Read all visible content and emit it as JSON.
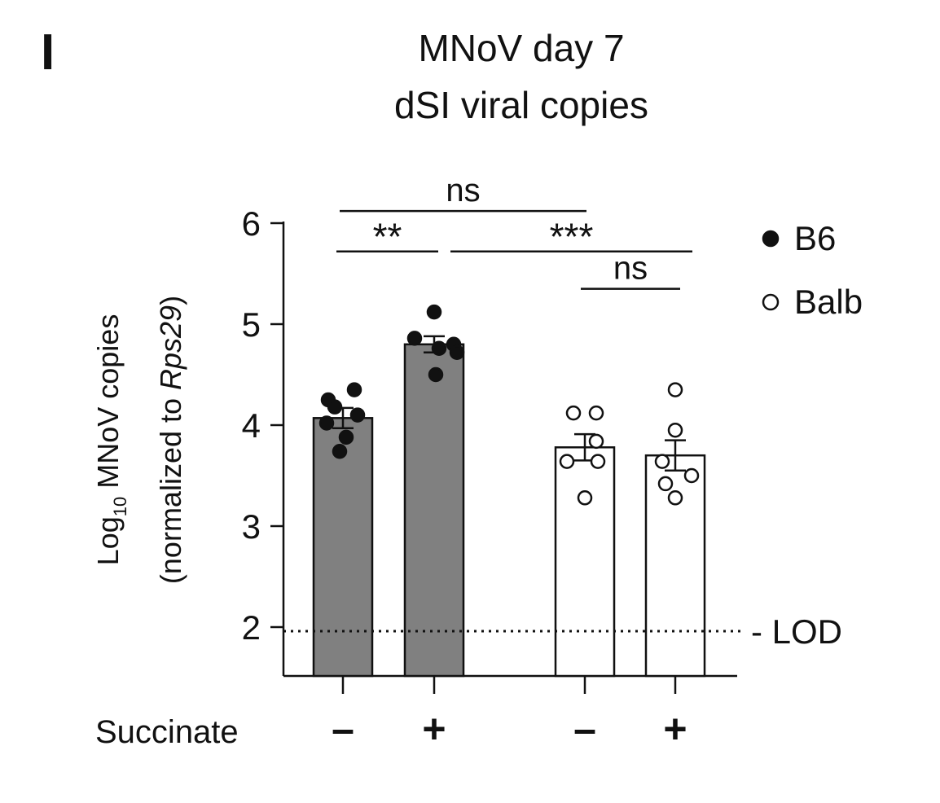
{
  "panel_label": "I",
  "chart_data": {
    "type": "bar",
    "title": [
      "MNoV day 7",
      "dSI viral copies"
    ],
    "ylabel": {
      "line1_main": "Log",
      "line1_sub": "10",
      "line1_rest": " MNoV copies",
      "line2_pre": "(normalized to ",
      "line2_italic": "Rps29",
      "line2_post": ")"
    },
    "ylim": [
      1.5,
      6
    ],
    "yticks": [
      "2",
      "3",
      "4",
      "5",
      "6"
    ],
    "x_row_label": "Succinate",
    "categories": [
      "–",
      "+",
      "–",
      "+"
    ],
    "groups": [
      "B6",
      "B6",
      "Balb",
      "Balb"
    ],
    "values": [
      4.07,
      4.8,
      3.78,
      3.7
    ],
    "sem": [
      0.1,
      0.08,
      0.13,
      0.15
    ],
    "bar_colors": [
      "#808080",
      "#808080",
      "#ffffff",
      "#ffffff"
    ],
    "points": [
      [
        4.25,
        4.35,
        4.18,
        4.1,
        4.02,
        3.88,
        3.74
      ],
      [
        5.12,
        4.86,
        4.8,
        4.76,
        4.72,
        4.5
      ],
      [
        4.12,
        4.12,
        3.84,
        3.64,
        3.64,
        3.28
      ],
      [
        4.35,
        3.95,
        3.64,
        3.5,
        3.42,
        3.28
      ]
    ],
    "legend": {
      "placement": "top-right",
      "entries": [
        {
          "label": "B6",
          "marker": "filled"
        },
        {
          "label": "Balb",
          "marker": "open"
        }
      ]
    },
    "reference_line": {
      "y": 1.96,
      "label": "- LOD",
      "style": "dotted"
    },
    "significance": [
      {
        "from": 0,
        "to": 2,
        "label": "ns",
        "y": 6.12
      },
      {
        "from": 0,
        "to": 1,
        "label": "**",
        "y": 5.72
      },
      {
        "from": 1,
        "to": 3,
        "label": "***",
        "y": 5.72
      },
      {
        "from": 2,
        "to": 3,
        "label": "ns",
        "y": 5.35
      }
    ]
  }
}
